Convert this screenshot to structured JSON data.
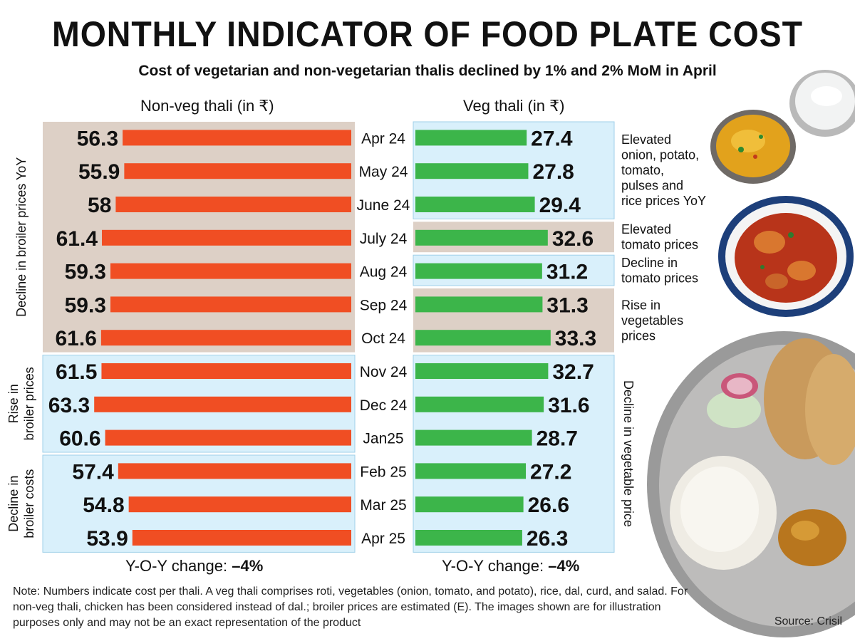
{
  "title": "MONTHLY INDICATOR OF FOOD PLATE COST",
  "subtitle": "Cost of vegetarian and non-vegetarian thalis declined by 1% and 2% MoM in April",
  "note": "Note: Numbers indicate cost per thali. A veg thali comprises roti, vegetables (onion, tomato, and potato), rice, dal, curd, and salad. For non-veg thali, chicken has been considered instead of dal.; broiler prices are estimated (E). The images shown are for illustration purposes only and may not be an exact representation of the product",
  "source": "Source: Crisil",
  "colors": {
    "nonveg_bar": "#f04e23",
    "veg_bar": "#3cb54a",
    "beige_band": "#ddd0c6",
    "blue_band": "#d9f0fb",
    "band_border": "#9fcfe8"
  },
  "illustration": [
    "curd-bowl-icon",
    "dal-bowl-icon",
    "curry-bowl-icon",
    "thali-plate-icon"
  ],
  "chart_data": {
    "type": "bar",
    "categories": [
      "Apr 24",
      "May 24",
      "June 24",
      "July 24",
      "Aug 24",
      "Sep 24",
      "Oct 24",
      "Nov 24",
      "Dec 24",
      "Jan25",
      "Feb 25",
      "Mar 25",
      "Apr 25"
    ],
    "series": [
      {
        "name": "Non-veg thali (in ₹)",
        "values": [
          56.3,
          55.9,
          58,
          61.4,
          59.3,
          59.3,
          61.6,
          61.5,
          63.3,
          60.6,
          57.4,
          54.8,
          53.9
        ],
        "labels": [
          "56.3",
          "55.9",
          "58",
          "61.4",
          "59.3",
          "59.3",
          "61.6",
          "61.5",
          "63.3",
          "60.6",
          "57.4",
          "54.8",
          "53.9"
        ]
      },
      {
        "name": "Veg thali (in ₹)",
        "values": [
          27.4,
          27.8,
          29.4,
          32.6,
          31.2,
          31.3,
          33.3,
          32.7,
          31.6,
          28.7,
          27.2,
          26.6,
          26.3
        ],
        "labels": [
          "27.4",
          "27.8",
          "29.4",
          "32.6",
          "31.2",
          "31.3",
          "33.3",
          "32.7",
          "31.6",
          "28.7",
          "27.2",
          "26.6",
          "26.3"
        ]
      }
    ],
    "nonveg_annotations": [
      {
        "text": [
          "Decline in broiler prices YoY"
        ],
        "from": 0,
        "to": 6,
        "band": "beige"
      },
      {
        "text": [
          "Rise in",
          "broiler prices"
        ],
        "from": 7,
        "to": 9,
        "band": "blue"
      },
      {
        "text": [
          "Decline in",
          "broiler costs"
        ],
        "from": 10,
        "to": 12,
        "band": "blue"
      }
    ],
    "veg_annotations": [
      {
        "text": [
          "Elevated",
          "onion, potato,",
          "tomato,",
          "pulses and",
          "rice prices YoY"
        ],
        "from": 0,
        "to": 2,
        "band": "blue",
        "orient": "horizontal"
      },
      {
        "text": [
          "Elevated",
          "tomato prices"
        ],
        "from": 3,
        "to": 3,
        "band": "beige",
        "orient": "horizontal"
      },
      {
        "text": [
          "Decline in",
          "tomato prices"
        ],
        "from": 4,
        "to": 4,
        "band": "blue",
        "orient": "horizontal"
      },
      {
        "text": [
          "Rise in",
          "vegetables",
          "prices"
        ],
        "from": 5,
        "to": 6,
        "band": "beige",
        "orient": "horizontal"
      },
      {
        "text": [
          "Decline in vegetable price"
        ],
        "from": 7,
        "to": 12,
        "band": "blue",
        "orient": "vertical"
      }
    ],
    "yoy": {
      "label": "Y-O-Y change:",
      "nonveg": "–4%",
      "veg": "–4%"
    }
  }
}
